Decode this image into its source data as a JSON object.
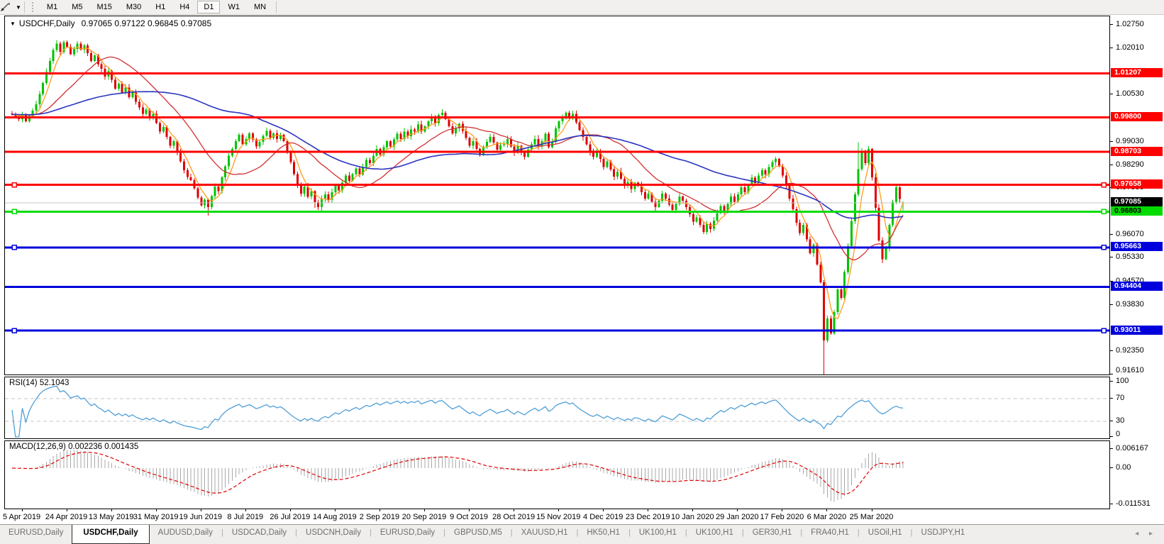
{
  "toolbar": {
    "drawing_tool_icon": "crosshair-tool",
    "timeframes": [
      {
        "label": "M1",
        "active": false
      },
      {
        "label": "M5",
        "active": false
      },
      {
        "label": "M15",
        "active": false
      },
      {
        "label": "M30",
        "active": false
      },
      {
        "label": "H1",
        "active": false
      },
      {
        "label": "H4",
        "active": false
      },
      {
        "label": "D1",
        "active": true
      },
      {
        "label": "W1",
        "active": false
      },
      {
        "label": "MN",
        "active": false
      }
    ]
  },
  "chart": {
    "symbol_label": "USDCHF,Daily",
    "ohlc_label": "0.97065 0.97122 0.96845 0.97085",
    "collapse_icon": "triangle-down",
    "colors": {
      "up": "#00C300",
      "down": "#DE0000",
      "ma_fast": "#FF9C1E",
      "ma_mid": "#D23232",
      "ma_slow": "#2A35BE",
      "level_red": "#FF0000",
      "level_green": "#00DC00",
      "level_blue": "#0000DC",
      "current_line": "#C4C4C4",
      "rsi_line": "#4F9FD8",
      "rsi_dash": "#C4C4C4",
      "macd_hist": "#A8A8A8",
      "macd_signal": "#E00000"
    },
    "price_axis_ticks": [
      "1.02750",
      "1.02010",
      "1.00530",
      "0.99030",
      "0.98290",
      "0.97550",
      "0.96070",
      "0.95330",
      "0.94570",
      "0.93830",
      "0.92350",
      "0.91610"
    ],
    "levels": [
      {
        "label": "1.01207",
        "price": 1.01207,
        "color": "#FF0000",
        "text_color": "#FFFFFF",
        "handles": false
      },
      {
        "label": "0.99800",
        "price": 0.998,
        "color": "#FF0000",
        "text_color": "#FFFFFF",
        "handles": false
      },
      {
        "label": "0.98703",
        "price": 0.98703,
        "color": "#FF0000",
        "text_color": "#FFFFFF",
        "handles": false
      },
      {
        "label": "0.97658",
        "price": 0.97658,
        "color": "#FF0000",
        "text_color": "#FFFFFF",
        "handles": true
      },
      {
        "label": "0.96803",
        "price": 0.96803,
        "color": "#00DC00",
        "text_color": "#000000",
        "handles": true
      },
      {
        "label": "0.95663",
        "price": 0.95663,
        "color": "#0000DC",
        "text_color": "#FFFFFF",
        "handles": true
      },
      {
        "label": "0.94404",
        "price": 0.94404,
        "color": "#0000DC",
        "text_color": "#FFFFFF",
        "handles": false
      },
      {
        "label": "0.93011",
        "price": 0.93011,
        "color": "#0000DC",
        "text_color": "#FFFFFF",
        "handles": true
      }
    ],
    "current_price": {
      "label": "0.97085",
      "price": 0.97085,
      "badge_bg": "#000000",
      "text_color": "#FFFFFF"
    },
    "date_labels": [
      {
        "label": "5 Apr 2019",
        "i": 3
      },
      {
        "label": "24 Apr 2019",
        "i": 16
      },
      {
        "label": "13 May 2019",
        "i": 29
      },
      {
        "label": "31 May 2019",
        "i": 42
      },
      {
        "label": "19 Jun 2019",
        "i": 55
      },
      {
        "label": "8 Jul 2019",
        "i": 68
      },
      {
        "label": "26 Jul 2019",
        "i": 81
      },
      {
        "label": "14 Aug 2019",
        "i": 94
      },
      {
        "label": "2 Sep 2019",
        "i": 107
      },
      {
        "label": "20 Sep 2019",
        "i": 120
      },
      {
        "label": "9 Oct 2019",
        "i": 133
      },
      {
        "label": "28 Oct 2019",
        "i": 146
      },
      {
        "label": "15 Nov 2019",
        "i": 159
      },
      {
        "label": "4 Dec 2019",
        "i": 172
      },
      {
        "label": "23 Dec 2019",
        "i": 185
      },
      {
        "label": "10 Jan 2020",
        "i": 198
      },
      {
        "label": "29 Jan 2020",
        "i": 211
      },
      {
        "label": "17 Feb 2020",
        "i": 224
      },
      {
        "label": "6 Mar 2020",
        "i": 237
      },
      {
        "label": "25 Mar 2020",
        "i": 250
      }
    ]
  },
  "rsi_panel": {
    "label": "RSI(14) 52.1043",
    "period": 14,
    "current_value": "52.1043",
    "axis": [
      {
        "label": "100",
        "v": 100
      },
      {
        "label": "70",
        "v": 70
      },
      {
        "label": "30",
        "v": 30
      },
      {
        "label": "0",
        "v": 0
      }
    ],
    "dashed_levels": [
      70,
      30
    ]
  },
  "macd_panel": {
    "label": "MACD(12,26,9) 0.002236 0.001435",
    "params": "12,26,9",
    "values": [
      "0.002236",
      "0.001435"
    ],
    "axis": [
      {
        "label": "0.006167",
        "val": 0.006167
      },
      {
        "label": "0.00",
        "val": 0
      },
      {
        "label": "-0.011531",
        "val": -0.011531
      }
    ]
  },
  "tabs": {
    "items": [
      {
        "label": "EURUSD,Daily",
        "active": false
      },
      {
        "label": "USDCHF,Daily",
        "active": true
      },
      {
        "label": "AUDUSD,Daily",
        "active": false
      },
      {
        "label": "USDCAD,Daily",
        "active": false
      },
      {
        "label": "USDCNH,Daily",
        "active": false
      },
      {
        "label": "EURUSD,Daily",
        "active": false
      },
      {
        "label": "GBPUSD,M5",
        "active": false
      },
      {
        "label": "XAUUSD,H1",
        "active": false
      },
      {
        "label": "HK50,H1",
        "active": false
      },
      {
        "label": "UK100,H1",
        "active": false
      },
      {
        "label": "UK100,H1",
        "active": false
      },
      {
        "label": "GER30,H1",
        "active": false
      },
      {
        "label": "FRA40,H1",
        "active": false
      },
      {
        "label": "USOil,H1",
        "active": false
      },
      {
        "label": "USDJPY,H1",
        "active": false
      }
    ],
    "scroll_left_icon": "◂",
    "scroll_right_icon": "▸"
  },
  "chart_data": {
    "type": "candlestick",
    "symbol": "USDCHF",
    "timeframe": "Daily",
    "title": "USDCHF,Daily 0.97065 0.97122 0.96845 0.97085",
    "ylim": [
      0.9161,
      1.0275
    ],
    "x_axis_dates": [
      "5 Apr 2019",
      "24 Apr 2019",
      "13 May 2019",
      "31 May 2019",
      "19 Jun 2019",
      "8 Jul 2019",
      "26 Jul 2019",
      "14 Aug 2019",
      "2 Sep 2019",
      "20 Sep 2019",
      "9 Oct 2019",
      "28 Oct 2019",
      "15 Nov 2019",
      "4 Dec 2019",
      "23 Dec 2019",
      "10 Jan 2020",
      "29 Jan 2020",
      "17 Feb 2020",
      "6 Mar 2020",
      "25 Mar 2020"
    ],
    "closes": [
      0.999,
      0.9982,
      0.9975,
      0.999,
      0.9968,
      0.9985,
      1.0002,
      1.0022,
      1.0055,
      1.009,
      1.0125,
      1.016,
      1.0195,
      1.0215,
      1.019,
      1.022,
      1.0205,
      1.0182,
      1.0198,
      1.0215,
      1.0196,
      1.021,
      1.0185,
      1.016,
      1.0178,
      1.015,
      1.0135,
      1.011,
      1.0128,
      1.01,
      1.0072,
      1.0088,
      1.006,
      1.0075,
      1.0045,
      1.006,
      1.003,
      1.0012,
      0.9992,
      1.0005,
      0.9978,
      0.9992,
      0.9962,
      0.9935,
      0.995,
      0.9918,
      0.989,
      0.9905,
      0.987,
      0.984,
      0.9812,
      0.979,
      0.978,
      0.9755,
      0.9725,
      0.97,
      0.9718,
      0.9695,
      0.973,
      0.976,
      0.9745,
      0.979,
      0.9825,
      0.9858,
      0.988,
      0.9905,
      0.9925,
      0.9895,
      0.9912,
      0.993,
      0.991,
      0.9888,
      0.9902,
      0.9922,
      0.9938,
      0.9915,
      0.993,
      0.9912,
      0.9925,
      0.9905,
      0.9872,
      0.9838,
      0.98,
      0.9768,
      0.9738,
      0.976,
      0.9728,
      0.9745,
      0.971,
      0.9695,
      0.9722,
      0.9735,
      0.9718,
      0.9742,
      0.9765,
      0.9748,
      0.9772,
      0.9795,
      0.9778,
      0.98,
      0.9818,
      0.9798,
      0.9822,
      0.9845,
      0.9835,
      0.9858,
      0.988,
      0.9862,
      0.9885,
      0.9905,
      0.9888,
      0.991,
      0.9928,
      0.9912,
      0.9935,
      0.992,
      0.9942,
      0.9935,
      0.9958,
      0.9935,
      0.9952,
      0.9968,
      0.9982,
      0.9962,
      0.9988,
      0.9995,
      0.9975,
      0.9952,
      0.993,
      0.9945,
      0.996,
      0.9938,
      0.9915,
      0.989,
      0.9905,
      0.988,
      0.9862,
      0.9885,
      0.9902,
      0.9918,
      0.99,
      0.9878,
      0.9892,
      0.9895,
      0.9912,
      0.9888,
      0.9868,
      0.989,
      0.9872,
      0.9855,
      0.9878,
      0.9895,
      0.9912,
      0.9888,
      0.9905,
      0.9928,
      0.9885,
      0.9902,
      0.9945,
      0.9968,
      0.9982,
      0.9995,
      0.9978,
      0.9992,
      0.9965,
      0.994,
      0.9918,
      0.9895,
      0.987,
      0.9855,
      0.9872,
      0.9848,
      0.9822,
      0.984,
      0.9815,
      0.9792,
      0.9808,
      0.9785,
      0.9762,
      0.9775,
      0.9752,
      0.9772,
      0.9765,
      0.9742,
      0.9722,
      0.9738,
      0.9712,
      0.9695,
      0.9715,
      0.9738,
      0.9722,
      0.9702,
      0.9685,
      0.9705,
      0.9728,
      0.9715,
      0.9695,
      0.9672,
      0.9648,
      0.9662,
      0.9638,
      0.9615,
      0.9642,
      0.9625,
      0.9652,
      0.9675,
      0.9698,
      0.9682,
      0.9705,
      0.9728,
      0.9712,
      0.9735,
      0.9758,
      0.9742,
      0.9765,
      0.9788,
      0.9772,
      0.9795,
      0.9812,
      0.9798,
      0.9822,
      0.9838,
      0.9848,
      0.9825,
      0.9795,
      0.9762,
      0.9722,
      0.9688,
      0.9645,
      0.9612,
      0.9638,
      0.9592,
      0.9548,
      0.9575,
      0.9512,
      0.9455,
      0.927,
      0.934,
      0.9292,
      0.936,
      0.9432,
      0.9405,
      0.9488,
      0.957,
      0.965,
      0.9735,
      0.9815,
      0.9872,
      0.9835,
      0.988,
      0.979,
      0.9692,
      0.9588,
      0.9528,
      0.9565,
      0.9638,
      0.9712,
      0.9758,
      0.972,
      0.97085
    ],
    "wick_overrides": {
      "15": {
        "h": 1.0226
      },
      "57": {
        "l": 0.9668
      },
      "88": {
        "l": 0.9692
      },
      "201": {
        "l": 0.9609
      },
      "236": {
        "l": 0.9161
      },
      "246": {
        "h": 0.9901
      }
    },
    "last_candle": {
      "o": 0.97065,
      "h": 0.97122,
      "l": 0.96845,
      "c": 0.97085
    },
    "overlays": [
      {
        "name": "ma-fast",
        "period": 5,
        "color": "#FF9C1E"
      },
      {
        "name": "ma-mid",
        "period": 20,
        "color": "#D23232"
      },
      {
        "name": "ma-slow",
        "period": 60,
        "color": "#2A35BE"
      }
    ],
    "horizontal_levels": [
      1.01207,
      0.998,
      0.98703,
      0.97658,
      0.96803,
      0.95663,
      0.94404,
      0.93011
    ],
    "current_price": 0.97085,
    "indicators": [
      {
        "name": "RSI",
        "params": "14",
        "value": 52.1043,
        "range": [
          0,
          100
        ],
        "dashed_levels": [
          30,
          70
        ]
      },
      {
        "name": "MACD",
        "params": "12,26,9",
        "values": [
          0.002236,
          0.001435
        ],
        "axis_range": [
          -0.011531,
          0.006167
        ]
      }
    ]
  }
}
